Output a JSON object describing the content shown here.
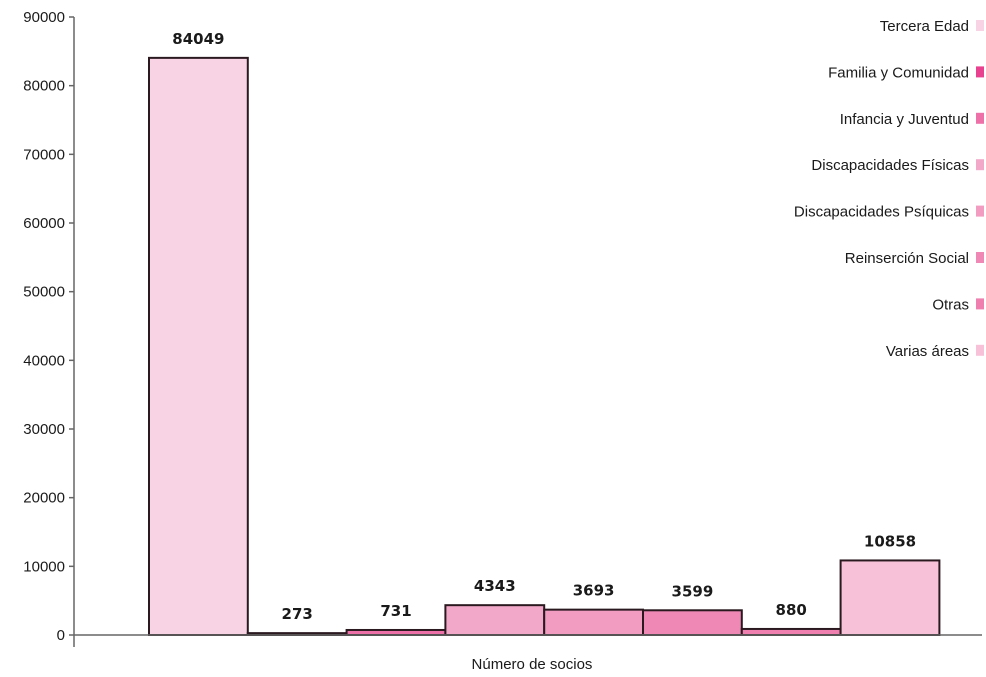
{
  "chart_data": {
    "type": "bar",
    "title": "",
    "xlabel": "Número de socios",
    "ylabel": "",
    "ylim": [
      0,
      90000
    ],
    "yticks": [
      0,
      10000,
      20000,
      30000,
      40000,
      50000,
      60000,
      70000,
      80000,
      90000
    ],
    "grid": false,
    "legend_position": "top-right",
    "series": [
      {
        "name": "Tercera Edad",
        "values": [
          84049
        ],
        "color": "#f8d3e3"
      },
      {
        "name": "Familia y Comunidad",
        "values": [
          273
        ],
        "color": "#e8418f"
      },
      {
        "name": "Infancia y Juventud",
        "values": [
          731
        ],
        "color": "#ee70a8"
      },
      {
        "name": "Discapacidades Físicas",
        "values": [
          4343
        ],
        "color": "#f2a9c9"
      },
      {
        "name": "Discapacidades Psíquicas",
        "values": [
          3693
        ],
        "color": "#f29cc2"
      },
      {
        "name": "Reinserción Social",
        "values": [
          3599
        ],
        "color": "#ef88b5"
      },
      {
        "name": "Otras",
        "values": [
          880
        ],
        "color": "#ee7fae"
      },
      {
        "name": "Varias áreas",
        "values": [
          10858
        ],
        "color": "#f7c2d8"
      }
    ]
  }
}
